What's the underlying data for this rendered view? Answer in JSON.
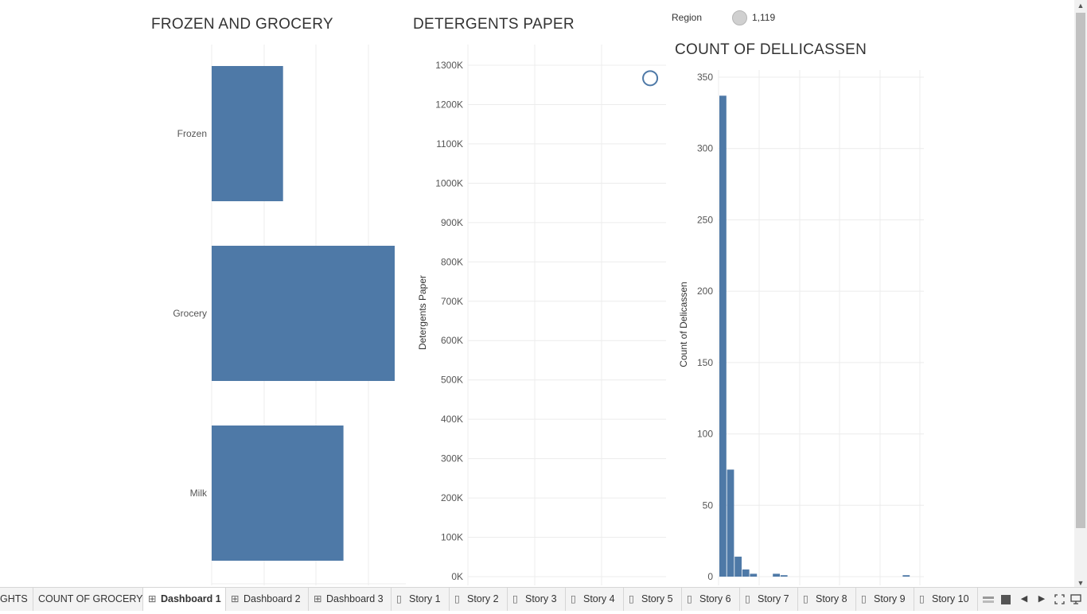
{
  "titles": {
    "frozen_grocery": "FROZEN AND GROCERY",
    "detergents": "DETERGENTS PAPER",
    "delicassen": "COUNT OF DELLICASSEN"
  },
  "legend": {
    "label": "Region",
    "value": "1,119",
    "marker_color": "#d0d0d0"
  },
  "colors": {
    "bar": "#4e79a7",
    "grid": "#ececec"
  },
  "charts": {
    "frozen_grocery": {
      "chart_data": {
        "type": "bar",
        "orientation": "horizontal",
        "categories": [
          "Frozen",
          "Grocery",
          "Milk"
        ],
        "values": [
          0.39,
          1.0,
          0.72
        ],
        "value_units": "relative to Grocery (no axis labels shown)",
        "grid": true
      }
    },
    "detergents": {
      "chart_data": {
        "type": "scatter",
        "ylabel": "Detergents Paper",
        "yticks": [
          "0K",
          "100K",
          "200K",
          "300K",
          "400K",
          "500K",
          "600K",
          "700K",
          "800K",
          "900K",
          "1000K",
          "1100K",
          "1200K",
          "1300K"
        ],
        "ylim": [
          0,
          1300000
        ],
        "points": [
          {
            "x": 0.92,
            "y": 1267000
          }
        ],
        "marker": "open-circle",
        "grid": true
      }
    },
    "delicassen": {
      "chart_data": {
        "type": "bar",
        "ylabel": "Count of Delicassen",
        "yticks": [
          "0",
          "50",
          "100",
          "150",
          "200",
          "250",
          "300",
          "350"
        ],
        "ylim": [
          0,
          350
        ],
        "bin_index": [
          0,
          1,
          2,
          3,
          4,
          7,
          8,
          24
        ],
        "values": [
          337,
          75,
          14,
          5,
          2,
          2,
          1,
          1
        ],
        "grid": true
      }
    }
  },
  "tabs": [
    {
      "label": "GHTS",
      "icon": ""
    },
    {
      "label": "COUNT OF GROCERY",
      "icon": ""
    },
    {
      "label": "Dashboard 1",
      "icon": "dashboard-icon",
      "active": true
    },
    {
      "label": "Dashboard 2",
      "icon": "dashboard-icon"
    },
    {
      "label": "Dashboard 3",
      "icon": "dashboard-icon"
    },
    {
      "label": "Story 1",
      "icon": "story-icon"
    },
    {
      "label": "Story 2",
      "icon": "story-icon"
    },
    {
      "label": "Story 3",
      "icon": "story-icon"
    },
    {
      "label": "Story 4",
      "icon": "story-icon"
    },
    {
      "label": "Story 5",
      "icon": "story-icon"
    },
    {
      "label": "Story 6",
      "icon": "story-icon"
    },
    {
      "label": "Story 7",
      "icon": "story-icon"
    },
    {
      "label": "Story 8",
      "icon": "story-icon"
    },
    {
      "label": "Story 9",
      "icon": "story-icon"
    },
    {
      "label": "Story 10",
      "icon": "story-icon"
    }
  ]
}
